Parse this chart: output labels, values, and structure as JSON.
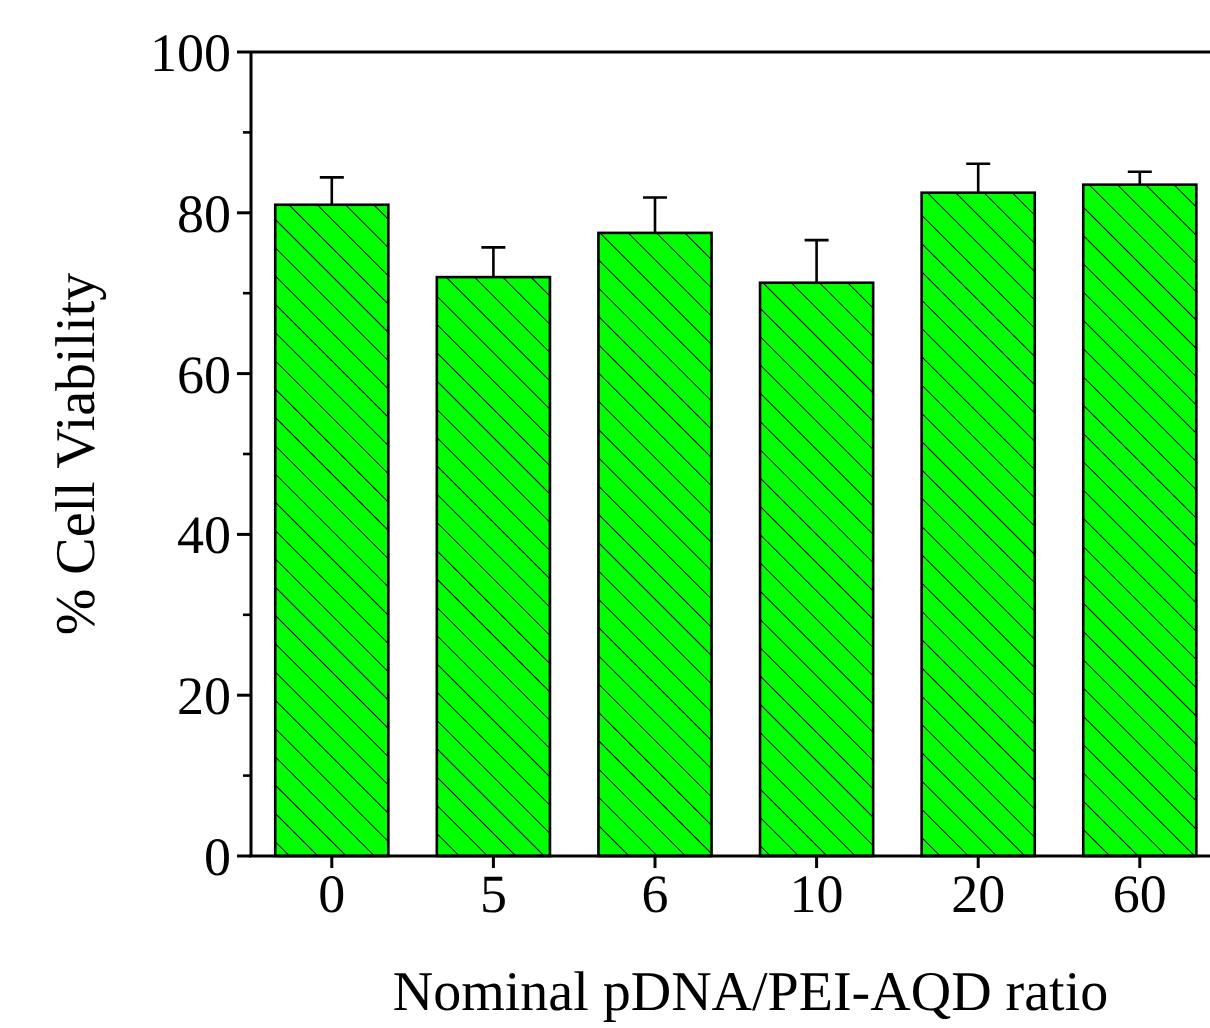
{
  "chart_data": {
    "type": "bar",
    "xlabel": "Nominal pDNA/PEI-AQD ratio",
    "ylabel": "% Cell Viability",
    "categories": [
      "0",
      "5",
      "6",
      "10",
      "20",
      "60"
    ],
    "values": [
      81.0,
      72.0,
      77.5,
      71.3,
      82.5,
      83.5
    ],
    "errors": [
      3.4,
      3.7,
      4.4,
      5.3,
      3.6,
      1.6
    ],
    "color": "#00ff00",
    "ylim": [
      0,
      100
    ],
    "yticks": [
      0,
      20,
      40,
      60,
      80,
      100
    ],
    "grid": false
  }
}
